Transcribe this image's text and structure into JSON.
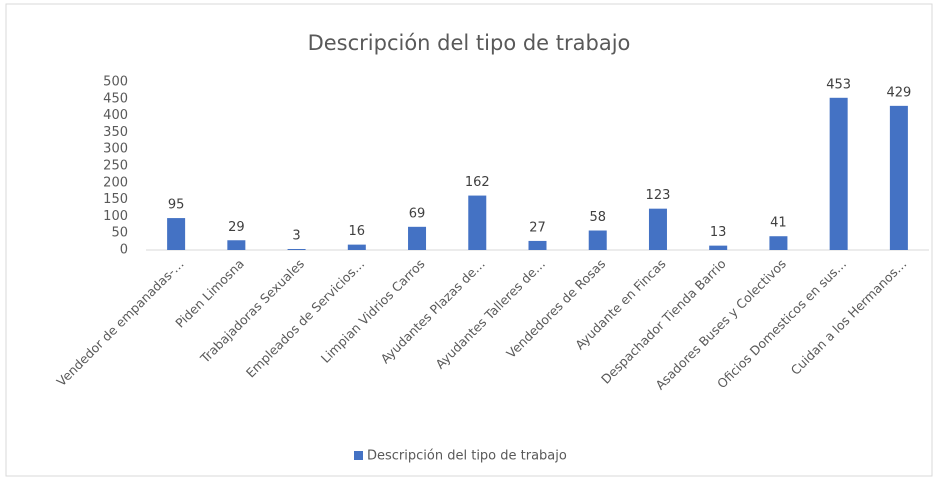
{
  "chart_data": {
    "type": "bar",
    "title": "Descripción del tipo de trabajo",
    "categories": [
      "Vendedor de empanadas-…",
      "Piden Limosna",
      "Trabajadoras Sexuales",
      "Empleados de Servicios…",
      "Limpian Vidrios Carros",
      "Ayudantes Plazas de…",
      "Ayudantes Talleres de…",
      "Vendedores de Rosas",
      "Ayudante en Fincas",
      "Despachador Tienda Barrio",
      "Asadores Buses y Colectivos",
      "Oficios Domesticos en sus…",
      "Cuidan a los Hermanos…"
    ],
    "series": [
      {
        "name": "Descripción del tipo de trabajo",
        "color": "#4472c4",
        "values": [
          95,
          29,
          3,
          16,
          69,
          162,
          27,
          58,
          123,
          13,
          41,
          453,
          429
        ]
      }
    ],
    "ylim": [
      0,
      500
    ],
    "yticks": [
      0,
      50,
      100,
      150,
      200,
      250,
      300,
      350,
      400,
      450,
      500
    ],
    "grid": false,
    "legend": "bottom"
  }
}
